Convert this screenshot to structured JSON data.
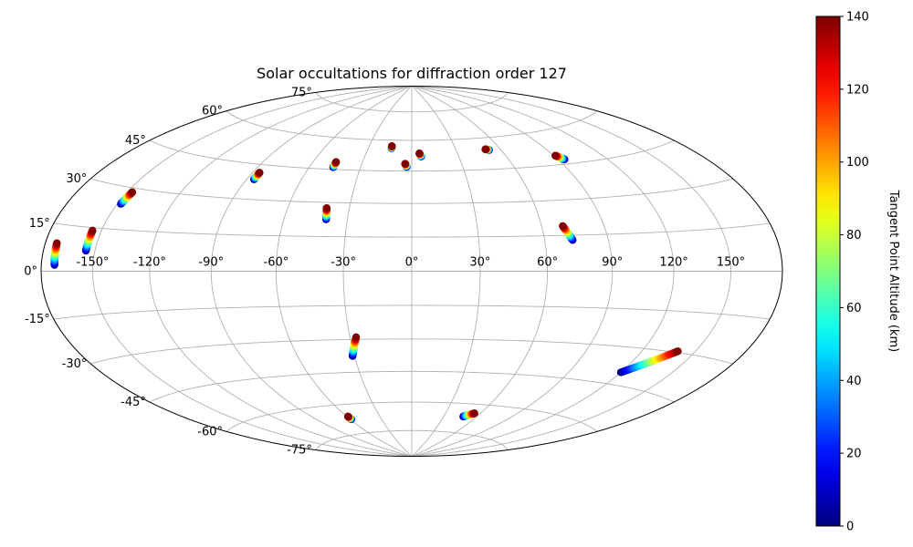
{
  "chart_data": {
    "type": "scatter",
    "projection": "hammer",
    "title": "Solar occultations for diffraction order 127",
    "lon_ticks": [
      -150,
      -120,
      -90,
      -60,
      -30,
      0,
      30,
      60,
      90,
      120,
      150
    ],
    "lon_tick_labels": [
      "-150°",
      "-120°",
      "-90°",
      "-60°",
      "-30°",
      "0°",
      "30°",
      "60°",
      "90°",
      "120°",
      "150°"
    ],
    "lat_ticks": [
      -75,
      -60,
      -45,
      -30,
      -15,
      0,
      15,
      30,
      45,
      60,
      75
    ],
    "lat_tick_labels": [
      "-75°",
      "-60°",
      "-45°",
      "-30°",
      "-15°",
      "0°",
      "15°",
      "30°",
      "45°",
      "60°",
      "75°"
    ],
    "grid": true,
    "colorbar": {
      "label": "Tangent Point Altitude (km)",
      "range": [
        0,
        140
      ],
      "ticks": [
        0,
        20,
        40,
        60,
        80,
        100,
        120,
        140
      ],
      "tick_labels": [
        "0",
        "20",
        "40",
        "60",
        "80",
        "100",
        "120",
        "140"
      ],
      "colormap": "jet"
    },
    "occultations": [
      {
        "start": [
          -172,
          2.0
        ],
        "end": [
          -173,
          9.0
        ]
      },
      {
        "start": [
          -155,
          7.0
        ],
        "end": [
          -155,
          14.0
        ]
      },
      {
        "start": [
          -148,
          24.0
        ],
        "end": [
          -147,
          28.5
        ]
      },
      {
        "start": [
          -86,
          38.5
        ],
        "end": [
          -86,
          41.5
        ]
      },
      {
        "start": [
          -46,
          46.0
        ],
        "end": [
          -46,
          48.5
        ]
      },
      {
        "start": [
          -40,
          22.5
        ],
        "end": [
          -41,
          27.5
        ]
      },
      {
        "start": [
          -14,
          56.0
        ],
        "end": [
          -14,
          57.0
        ]
      },
      {
        "start": [
          -3,
          47.0
        ],
        "end": [
          -4,
          48.5
        ]
      },
      {
        "start": [
          6,
          52.0
        ],
        "end": [
          5,
          53.5
        ]
      },
      {
        "start": [
          52,
          54.0
        ],
        "end": [
          50,
          54.5
        ]
      },
      {
        "start": [
          94,
          47.0
        ],
        "end": [
          91,
          49.0
        ]
      },
      {
        "start": [
          73,
          13.0
        ],
        "end": [
          70,
          19.0
        ]
      },
      {
        "start": [
          -31,
          -37.5
        ],
        "end": [
          -27,
          -29.0
        ]
      },
      {
        "start": [
          -59,
          -67.5
        ],
        "end": [
          -59,
          -66.0
        ]
      },
      {
        "start": [
          48,
          -66.5
        ],
        "end": [
          55,
          -64.5
        ]
      },
      {
        "start": [
          120,
          -40.0
        ],
        "end": [
          140,
          -29.5
        ]
      }
    ]
  }
}
